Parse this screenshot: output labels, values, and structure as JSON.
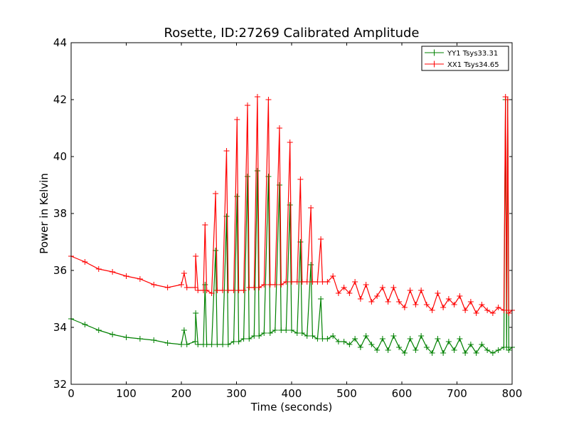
{
  "chart_data": {
    "type": "line",
    "title": "Rosette, ID:27269 Calibrated Amplitude",
    "xlabel": "Time (seconds)",
    "ylabel": "Power in Kelvin",
    "xlim": [
      0,
      800
    ],
    "ylim": [
      32,
      44
    ],
    "xticks": [
      "0",
      "100",
      "200",
      "300",
      "400",
      "500",
      "600",
      "700",
      "800"
    ],
    "yticks": [
      "32",
      "34",
      "36",
      "38",
      "40",
      "42",
      "44"
    ],
    "grid": false,
    "legend_position": "top-right",
    "marker": "+",
    "series": [
      {
        "name": "YY1 Tsys33.31",
        "color": "#008000",
        "x": [
          0,
          25,
          50,
          75,
          100,
          125,
          150,
          175,
          200,
          205,
          210,
          225,
          226,
          230,
          240,
          243,
          246,
          255,
          262,
          265,
          275,
          282,
          285,
          295,
          301,
          304,
          313,
          320,
          323,
          332,
          338,
          341,
          350,
          358,
          361,
          370,
          378,
          381,
          390,
          397,
          400,
          410,
          416,
          419,
          428,
          435,
          438,
          447,
          453,
          456,
          465,
          475,
          485,
          495,
          505,
          515,
          525,
          535,
          545,
          555,
          565,
          575,
          585,
          595,
          605,
          615,
          625,
          635,
          645,
          655,
          665,
          675,
          685,
          695,
          705,
          715,
          725,
          735,
          745,
          755,
          765,
          775,
          785,
          788,
          790,
          792,
          794,
          800
        ],
        "y": [
          34.3,
          34.1,
          33.9,
          33.75,
          33.65,
          33.6,
          33.55,
          33.45,
          33.4,
          33.9,
          33.4,
          33.5,
          34.5,
          33.4,
          33.4,
          35.5,
          33.4,
          33.4,
          36.7,
          33.4,
          33.4,
          37.9,
          33.4,
          33.5,
          38.6,
          33.5,
          33.6,
          39.3,
          33.6,
          33.7,
          39.5,
          33.7,
          33.8,
          39.3,
          33.8,
          33.9,
          39.0,
          33.9,
          33.9,
          38.3,
          33.9,
          33.8,
          37.0,
          33.8,
          33.7,
          36.2,
          33.7,
          33.6,
          35.0,
          33.6,
          33.6,
          33.7,
          33.5,
          33.5,
          33.4,
          33.6,
          33.3,
          33.7,
          33.4,
          33.2,
          33.6,
          33.2,
          33.7,
          33.3,
          33.1,
          33.6,
          33.2,
          33.7,
          33.3,
          33.1,
          33.6,
          33.1,
          33.5,
          33.2,
          33.6,
          33.1,
          33.4,
          33.1,
          33.4,
          33.2,
          33.1,
          33.2,
          33.3,
          42.0,
          33.3,
          42.0,
          33.2,
          33.3
        ]
      },
      {
        "name": "XX1 Tsys34.65",
        "color": "#ff0000",
        "x": [
          0,
          25,
          50,
          75,
          100,
          125,
          150,
          175,
          200,
          205,
          210,
          225,
          226,
          230,
          240,
          243,
          246,
          255,
          262,
          265,
          275,
          282,
          285,
          295,
          301,
          304,
          313,
          320,
          323,
          332,
          338,
          341,
          350,
          358,
          361,
          370,
          378,
          381,
          390,
          397,
          400,
          410,
          416,
          419,
          428,
          435,
          438,
          447,
          453,
          456,
          465,
          475,
          485,
          495,
          505,
          515,
          525,
          535,
          545,
          555,
          565,
          575,
          585,
          595,
          605,
          615,
          625,
          635,
          645,
          655,
          665,
          675,
          685,
          695,
          705,
          715,
          725,
          735,
          745,
          755,
          765,
          775,
          785,
          788,
          790,
          792,
          794,
          800
        ],
        "y": [
          36.5,
          36.3,
          36.05,
          35.95,
          35.8,
          35.7,
          35.5,
          35.4,
          35.5,
          35.9,
          35.4,
          35.4,
          36.5,
          35.3,
          35.3,
          37.6,
          35.3,
          35.2,
          38.7,
          35.3,
          35.3,
          40.2,
          35.3,
          35.3,
          41.3,
          35.3,
          35.3,
          41.8,
          35.4,
          35.4,
          42.1,
          35.4,
          35.5,
          42.0,
          35.5,
          35.5,
          41.0,
          35.5,
          35.6,
          40.5,
          35.6,
          35.6,
          39.2,
          35.6,
          35.6,
          38.2,
          35.6,
          35.6,
          37.1,
          35.6,
          35.6,
          35.8,
          35.2,
          35.4,
          35.2,
          35.6,
          35.0,
          35.5,
          34.9,
          35.1,
          35.4,
          34.9,
          35.4,
          34.9,
          34.7,
          35.3,
          34.8,
          35.3,
          34.8,
          34.6,
          35.2,
          34.7,
          35.0,
          34.8,
          35.1,
          34.6,
          34.9,
          34.5,
          34.8,
          34.6,
          34.5,
          34.7,
          34.6,
          42.1,
          34.6,
          42.0,
          34.5,
          34.6
        ]
      }
    ]
  }
}
